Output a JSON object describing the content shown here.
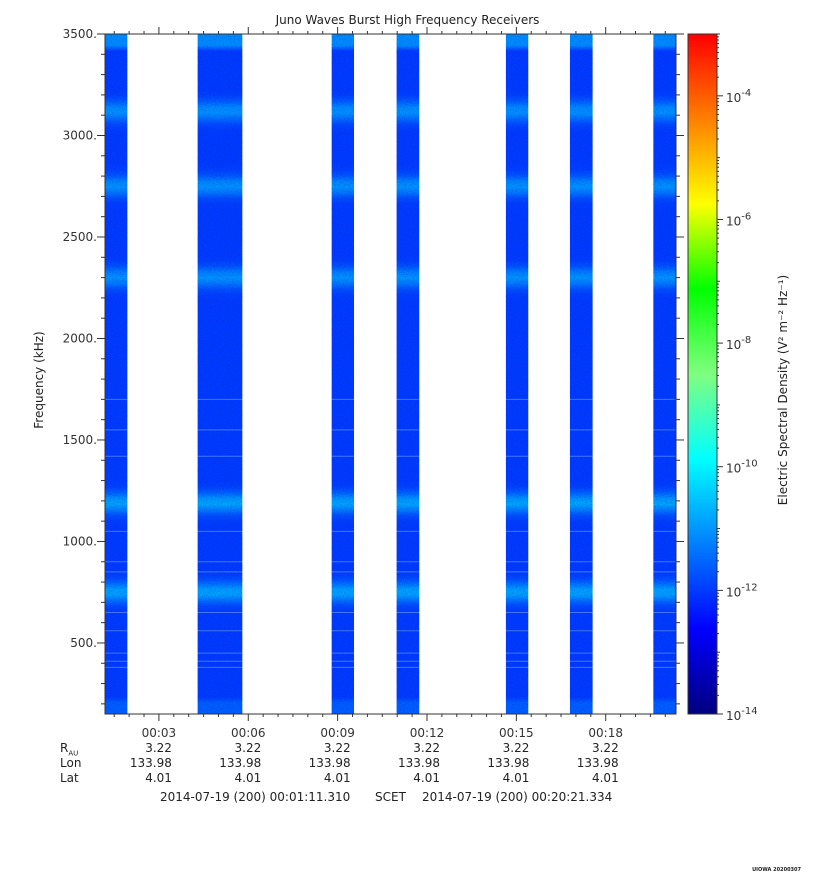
{
  "chart_data": {
    "type": "heatmap",
    "title": "Juno Waves Burst High Frequency Receivers",
    "ylabel": "Frequency (kHz)",
    "colorbar_label": "Electric Spectral Density (V² m⁻² Hz⁻¹)",
    "ylim": [
      150,
      3500
    ],
    "y_ticks": [
      {
        "value": 500,
        "label": "500."
      },
      {
        "value": 1000,
        "label": "1000."
      },
      {
        "value": 1500,
        "label": "1500."
      },
      {
        "value": 2000,
        "label": "2000."
      },
      {
        "value": 2500,
        "label": "2500."
      },
      {
        "value": 3000,
        "label": "3000."
      },
      {
        "value": 3500,
        "label": "3500."
      }
    ],
    "x_range_minutes": [
      1.19,
      20.36
    ],
    "x_ticks": [
      {
        "minute": 3,
        "label": "00:03"
      },
      {
        "minute": 6,
        "label": "00:06"
      },
      {
        "minute": 9,
        "label": "00:09"
      },
      {
        "minute": 12,
        "label": "00:12"
      },
      {
        "minute": 15,
        "label": "00:15"
      },
      {
        "minute": 18,
        "label": "00:18"
      }
    ],
    "colorbar_log_range": [
      -14,
      -3
    ],
    "colorbar_ticks": [
      {
        "exp": -14,
        "label": "10",
        "sup": "-14"
      },
      {
        "exp": -12,
        "label": "10",
        "sup": "-12"
      },
      {
        "exp": -10,
        "label": "10",
        "sup": "-10"
      },
      {
        "exp": -8,
        "label": "10",
        "sup": "-8"
      },
      {
        "exp": -6,
        "label": "10",
        "sup": "-6"
      },
      {
        "exp": -4,
        "label": "10",
        "sup": "-4"
      }
    ],
    "colormap": [
      "#00007f",
      "#0000ff",
      "#007fff",
      "#00ffff",
      "#7fff7f",
      "#00ff00",
      "#ffff00",
      "#ff7f00",
      "#ff0000"
    ],
    "data_intervals_minutes": [
      [
        1.19,
        1.94
      ],
      [
        4.3,
        5.8
      ],
      [
        8.8,
        9.55
      ],
      [
        10.98,
        11.74
      ],
      [
        14.65,
        15.4
      ],
      [
        16.8,
        17.56
      ],
      [
        19.6,
        20.36
      ]
    ],
    "typical_background_log_density": -12,
    "emission_bands": [
      {
        "frequency_khz": 3120,
        "log_density": -11
      },
      {
        "frequency_khz": 2750,
        "log_density": -11
      },
      {
        "frequency_khz": 2300,
        "log_density": -11
      },
      {
        "frequency_khz": 1190,
        "log_density": -10.8
      },
      {
        "frequency_khz": 750,
        "log_density": -10.8
      }
    ]
  },
  "ephemeris": {
    "rows": [
      {
        "label": "R",
        "sub": "AU",
        "values": [
          "3.22",
          "3.22",
          "3.22",
          "3.22",
          "3.22",
          "3.22"
        ]
      },
      {
        "label": "Lon",
        "values": [
          "133.98",
          "133.98",
          "133.98",
          "133.98",
          "133.98",
          "133.98"
        ]
      },
      {
        "label": "Lat",
        "values": [
          "4.01",
          "4.01",
          "4.01",
          "4.01",
          "4.01",
          "4.01"
        ]
      }
    ]
  },
  "time_range": {
    "start": "2014-07-19 (200) 00:01:11.310",
    "frame": "SCET",
    "end": "2014-07-19 (200) 00:20:21.334"
  },
  "credit": "UIOWA 20200307",
  "colors": {
    "axis": "#333333",
    "background": "#ffffff"
  }
}
